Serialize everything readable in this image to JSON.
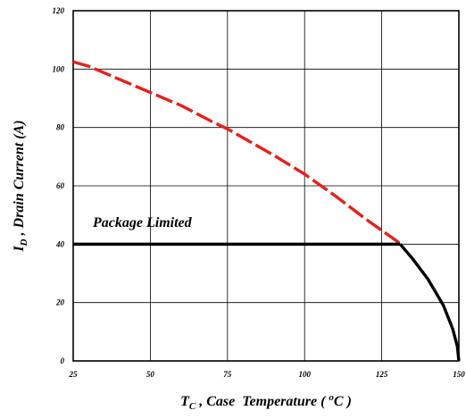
{
  "chart_data": {
    "type": "line",
    "title": "",
    "ylabel": {
      "prefix": "I",
      "sub": "D",
      "suffix": " , Drain Current (A)"
    },
    "xlabel": {
      "prefix": "T",
      "sub": "C",
      "mid": " , Case  Temperature ( ",
      "sup": "o",
      "suffix": "C )"
    },
    "xlim": [
      25,
      150
    ],
    "ylim": [
      0,
      120
    ],
    "xticks": [
      25,
      50,
      75,
      100,
      125,
      150
    ],
    "yticks": [
      0,
      20,
      40,
      60,
      80,
      100,
      120
    ],
    "grid": true,
    "annotation": "Package Limited",
    "series": [
      {
        "style": "dashed",
        "color": "#e8201c",
        "x": [
          25,
          30,
          40,
          50,
          60,
          70,
          75,
          80,
          90,
          100,
          110,
          120,
          130,
          131
        ],
        "y": [
          102.5,
          101,
          96.5,
          92,
          87.5,
          82,
          79.5,
          76.5,
          70.5,
          64,
          56.5,
          48.5,
          41,
          40
        ]
      },
      {
        "style": "solid",
        "color": "#000000",
        "x": [
          25,
          131
        ],
        "y": [
          40,
          40
        ]
      },
      {
        "style": "solid",
        "color": "#000000",
        "x": [
          131,
          135,
          140,
          145,
          148,
          149.5,
          150
        ],
        "y": [
          40,
          35,
          28,
          19,
          11,
          5,
          0
        ]
      }
    ]
  }
}
